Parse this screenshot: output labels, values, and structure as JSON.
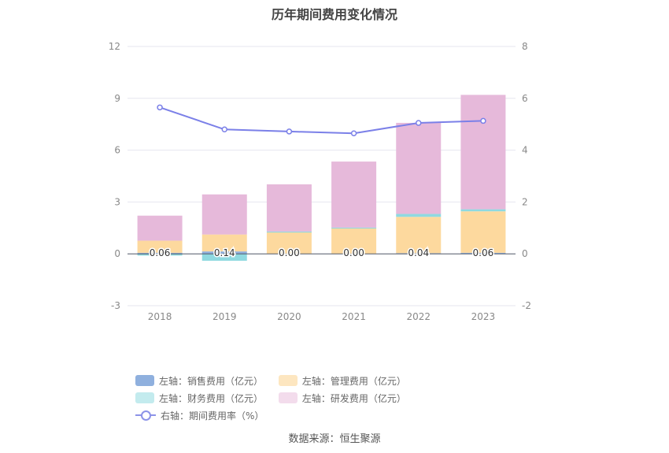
{
  "chart_data": {
    "type": "bar",
    "title": "历年期间费用变化情况",
    "categories": [
      "2018",
      "2019",
      "2020",
      "2021",
      "2022",
      "2023"
    ],
    "stacked": true,
    "y_left": {
      "ticks": [
        "12",
        "9",
        "6",
        "3",
        "0",
        "-3"
      ],
      "min": -3,
      "max": 12
    },
    "y_right": {
      "ticks": [
        "8",
        "6",
        "4",
        "2",
        "0",
        "-2"
      ],
      "min": -2,
      "max": 8
    },
    "series": [
      {
        "name": "左轴：销售费用（亿元）",
        "type": "bar",
        "axis": "left",
        "color": "#8fb0de",
        "values": [
          0.06,
          0.14,
          0.0,
          0.0,
          0.04,
          0.06
        ],
        "labels": [
          "0.06",
          "0.14",
          "0.00",
          "0.00",
          "0.04",
          "0.06"
        ]
      },
      {
        "name": "左轴：管理费用（亿元）",
        "type": "bar",
        "axis": "left",
        "color": "#fdd99e",
        "values": [
          0.7,
          0.98,
          1.25,
          1.5,
          2.1,
          2.4
        ]
      },
      {
        "name": "左轴：财务费用（亿元）",
        "type": "bar",
        "axis": "left",
        "color": "#8fd9e0",
        "values": [
          -0.1,
          -0.4,
          0.04,
          0.02,
          0.17,
          0.12
        ]
      },
      {
        "name": "左轴：研发费用（亿元）",
        "type": "bar",
        "axis": "left",
        "color": "#e6b9da",
        "values": [
          1.45,
          2.32,
          2.73,
          3.82,
          5.27,
          6.62
        ]
      },
      {
        "name": "右轴：期间费用率（%）",
        "type": "line",
        "axis": "right",
        "color": "#7b80e8",
        "values": [
          5.65,
          4.8,
          4.72,
          4.65,
          5.05,
          5.13
        ]
      }
    ],
    "grid": true,
    "legend_position": "bottom"
  },
  "source_text": "数据来源：恒生聚源"
}
